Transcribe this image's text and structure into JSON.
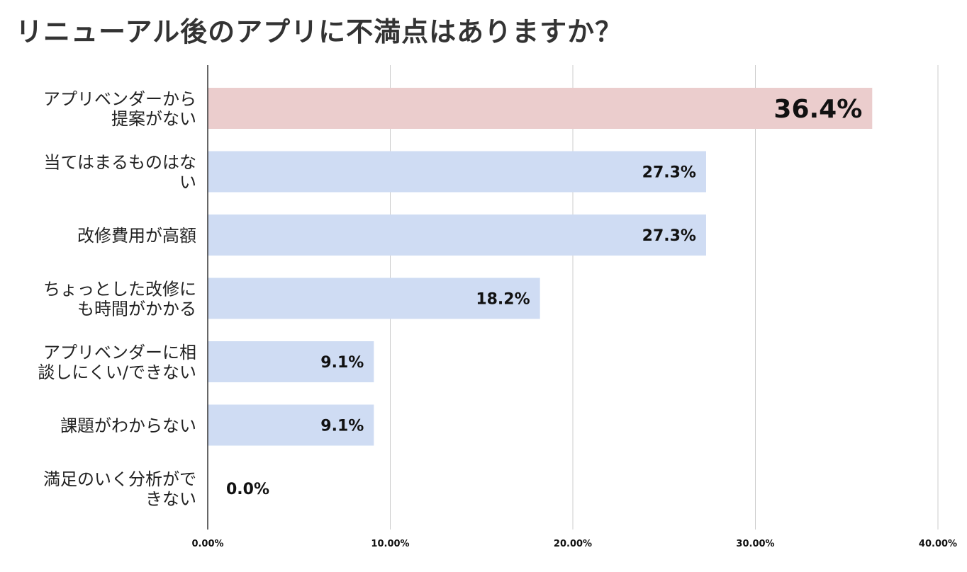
{
  "chart_data": {
    "type": "bar",
    "orientation": "horizontal",
    "title": "リニューアル後のアプリに不満点はありますか？",
    "categories": [
      [
        "アプリベンダーから",
        "提案がない"
      ],
      [
        "当てはまるものはな",
        "い"
      ],
      [
        "改修費用が高額"
      ],
      [
        "ちょっとした改修に",
        "も時間がかかる"
      ],
      [
        "アプリベンダーに相",
        "談しにくい/できない"
      ],
      [
        "課題がわからない"
      ],
      [
        "満足のいく分析がで",
        "きない"
      ]
    ],
    "values": [
      36.4,
      27.3,
      27.3,
      18.2,
      9.1,
      9.1,
      0.0
    ],
    "value_labels": [
      "36.4%",
      "27.3%",
      "27.3%",
      "18.2%",
      "9.1%",
      "9.1%",
      "0.0%"
    ],
    "highlight_index": 0,
    "xlim": [
      0,
      40
    ],
    "xticks": [
      0,
      10,
      20,
      30,
      40
    ],
    "xtick_labels": [
      "0.00%",
      "10.00%",
      "20.00%",
      "30.00%",
      "40.00%"
    ],
    "grid": true,
    "colors": {
      "highlight": "#ebcdcd",
      "bar": "#cfdcf3",
      "zero_label": "#c9d8f2",
      "grid": "#cccccc",
      "axis": "#333333"
    }
  }
}
